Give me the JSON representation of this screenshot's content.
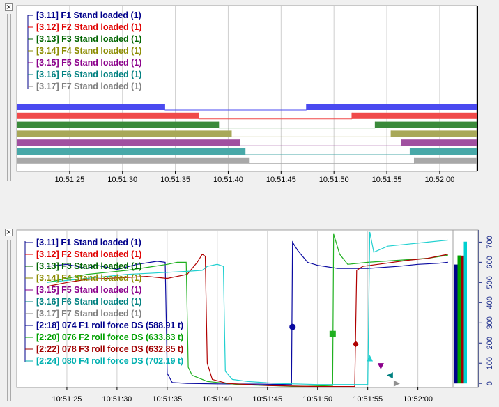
{
  "panels": [
    {
      "legend": [
        {
          "text": "[3.11] F1 Stand loaded (1)",
          "color": "#00008b"
        },
        {
          "text": "[3.12] F2 Stand loaded (1)",
          "color": "#e00000"
        },
        {
          "text": "[3.13] F3 Stand loaded (1)",
          "color": "#006400"
        },
        {
          "text": "[3.14] F4 Stand loaded (1)",
          "color": "#8b8b00"
        },
        {
          "text": "[3.15] F5 Stand loaded (1)",
          "color": "#8b008b"
        },
        {
          "text": "[3.16] F6 Stand loaded (1)",
          "color": "#008080"
        },
        {
          "text": "[3.17] F7 Stand loaded (1)",
          "color": "#808080"
        }
      ]
    },
    {
      "legend": [
        {
          "text": "[3.11] F1 Stand loaded (1)",
          "color": "#00008b"
        },
        {
          "text": "[3.12] F2 Stand loaded (1)",
          "color": "#e00000"
        },
        {
          "text": "[3.13] F3 Stand loaded (1)",
          "color": "#006400"
        },
        {
          "text": "[3.14] F4 Stand loaded (1)",
          "color": "#8b8b00"
        },
        {
          "text": "[3.15] F5 Stand loaded (1)",
          "color": "#8b008b"
        },
        {
          "text": "[3.16] F6 Stand loaded (1)",
          "color": "#008080"
        },
        {
          "text": "[3.17] F7 Stand loaded (1)",
          "color": "#808080"
        },
        {
          "text": "[2:18] 074 F1 roll force DS (588.91 t)",
          "color": "#00008b"
        },
        {
          "text": "[2:20] 076 F2 roll force DS (633.83 t)",
          "color": "#00a000"
        },
        {
          "text": "[2:22] 078 F3 roll force DS (632.85 t)",
          "color": "#a00000"
        },
        {
          "text": "[2:24] 080 F4 roll force DS (702.19 t)",
          "color": "#00b0b0"
        }
      ]
    }
  ],
  "chart_data": [
    {
      "type": "line",
      "x_ticks": [
        "10:51:25",
        "10:51:30",
        "10:51:35",
        "10:51:40",
        "10:51:45",
        "10:51:50",
        "10:51:55",
        "10:52:00"
      ],
      "xlim_seconds_after_10_51_20": [
        0,
        43.5
      ],
      "series": [
        {
          "name": "[3.11] F1 Stand loaded (1)",
          "color": "#4a4af0",
          "low_from": 34.0,
          "low_to": 47.4
        },
        {
          "name": "[3.12] F2 Stand loaded (1)",
          "color": "#f04a4a",
          "low_from": 37.2,
          "low_to": 51.7
        },
        {
          "name": "[3.13] F3 Stand loaded (1)",
          "color": "#3a8a3a",
          "low_from": 39.1,
          "low_to": 53.9
        },
        {
          "name": "[3.14] F4 Stand loaded (1)",
          "color": "#a8a858",
          "low_from": 40.3,
          "low_to": 55.4
        },
        {
          "name": "[3.15] F5 Stand loaded (1)",
          "color": "#a050a0",
          "low_from": 41.1,
          "low_to": 56.4
        },
        {
          "name": "[3.16] F6 Stand loaded (1)",
          "color": "#48a8a8",
          "low_from": 41.6,
          "low_to": 57.2
        },
        {
          "name": "[3.17] F7 Stand loaded (1)",
          "color": "#a8a8a8",
          "low_from": 42.0,
          "low_to": 57.6
        }
      ]
    },
    {
      "type": "line",
      "x_ticks": [
        "10:51:25",
        "10:51:30",
        "10:51:35",
        "10:51:40",
        "10:51:45",
        "10:51:50",
        "10:51:55",
        "10:52:00"
      ],
      "y_ticks": [
        "0",
        "100",
        "200",
        "300",
        "400",
        "500",
        "600",
        "700"
      ],
      "ylim": [
        -20,
        760
      ],
      "series": [
        {
          "name": "[2:18] 074 F1 roll force DS (588.91 t)",
          "color": "#0a0aa0",
          "marker": "circle",
          "points": [
            [
              23,
              580
            ],
            [
              25,
              590
            ],
            [
              27,
              570
            ],
            [
              28,
              585
            ],
            [
              30,
              565
            ],
            [
              32,
              590
            ],
            [
              34,
              605
            ],
            [
              34.8,
              600
            ],
            [
              35.0,
              50
            ],
            [
              35.5,
              5
            ],
            [
              37,
              0
            ],
            [
              40,
              -2
            ],
            [
              44,
              -3
            ],
            [
              47,
              -5
            ],
            [
              47.4,
              -5
            ],
            [
              47.5,
              700
            ],
            [
              48,
              660
            ],
            [
              49,
              600
            ],
            [
              50,
              585
            ],
            [
              52,
              570
            ],
            [
              55,
              570
            ],
            [
              58,
              580
            ],
            [
              60,
              590
            ],
            [
              62,
              595
            ],
            [
              63,
              600
            ]
          ],
          "marker_at": [
            47.5,
            280
          ]
        },
        {
          "name": "[2:20] 076 F2 roll force DS (633.83 t)",
          "color": "#20b020",
          "marker": "square",
          "points": [
            [
              23,
              500
            ],
            [
              25,
              520
            ],
            [
              27,
              540
            ],
            [
              29,
              550
            ],
            [
              31,
              560
            ],
            [
              33,
              575
            ],
            [
              35,
              590
            ],
            [
              36,
              600
            ],
            [
              36.9,
              600
            ],
            [
              37.1,
              80
            ],
            [
              37.5,
              40
            ],
            [
              39,
              10
            ],
            [
              42,
              -5
            ],
            [
              48,
              -15
            ],
            [
              51.5,
              -10
            ],
            [
              51.6,
              740
            ],
            [
              52.2,
              640
            ],
            [
              53,
              590
            ],
            [
              55,
              600
            ],
            [
              58,
              610
            ],
            [
              61,
              620
            ],
            [
              63,
              635
            ]
          ],
          "marker_at": [
            51.5,
            245
          ]
        },
        {
          "name": "[2:22] 078 F3 roll force DS (632.85 t)",
          "color": "#b00000",
          "marker": "diamond",
          "points": [
            [
              23,
              480
            ],
            [
              25,
              500
            ],
            [
              27,
              515
            ],
            [
              29,
              520
            ],
            [
              31,
              525
            ],
            [
              33,
              530
            ],
            [
              35,
              520
            ],
            [
              37,
              540
            ],
            [
              38,
              600
            ],
            [
              38.5,
              640
            ],
            [
              38.8,
              630
            ],
            [
              39.0,
              100
            ],
            [
              39.5,
              20
            ],
            [
              41,
              0
            ],
            [
              45,
              -10
            ],
            [
              50,
              -15
            ],
            [
              53.7,
              -15
            ],
            [
              53.9,
              560
            ],
            [
              54.5,
              580
            ],
            [
              56,
              590
            ],
            [
              59,
              610
            ],
            [
              61,
              620
            ],
            [
              63,
              640
            ]
          ],
          "marker_at": [
            53.8,
            195
          ]
        },
        {
          "name": "[2:24] 080 F4 roll force DS (702.19 t)",
          "color": "#20d0d0",
          "marker": "triangle-up",
          "points": [
            [
              23,
              500
            ],
            [
              25,
              510
            ],
            [
              27,
              520
            ],
            [
              29,
              530
            ],
            [
              31,
              540
            ],
            [
              33,
              545
            ],
            [
              35,
              550
            ],
            [
              37,
              555
            ],
            [
              38.5,
              560
            ],
            [
              39,
              580
            ],
            [
              40,
              590
            ],
            [
              40.6,
              580
            ],
            [
              40.8,
              60
            ],
            [
              41.5,
              20
            ],
            [
              43,
              10
            ],
            [
              46,
              0
            ],
            [
              50,
              -5
            ],
            [
              55.0,
              -5
            ],
            [
              55.2,
              750
            ],
            [
              55.6,
              650
            ],
            [
              57,
              680
            ],
            [
              59,
              690
            ],
            [
              61,
              700
            ],
            [
              63,
              710
            ]
          ],
          "marker_at": [
            55.2,
            125
          ]
        }
      ],
      "extra_markers": [
        {
          "shape": "triangle-down",
          "color": "#8b008b",
          "at": [
            56.3,
            85
          ]
        },
        {
          "shape": "triangle-left",
          "color": "#008080",
          "at": [
            57.2,
            40
          ]
        },
        {
          "shape": "triangle-right",
          "color": "#909090",
          "at": [
            57.9,
            0
          ]
        }
      ],
      "bar_values": [
        {
          "color": "#00008b",
          "value": 588.91
        },
        {
          "color": "#00a000",
          "value": 633.83
        },
        {
          "color": "#a00000",
          "value": 632.85
        },
        {
          "color": "#00d0d0",
          "value": 702.19
        }
      ]
    }
  ]
}
